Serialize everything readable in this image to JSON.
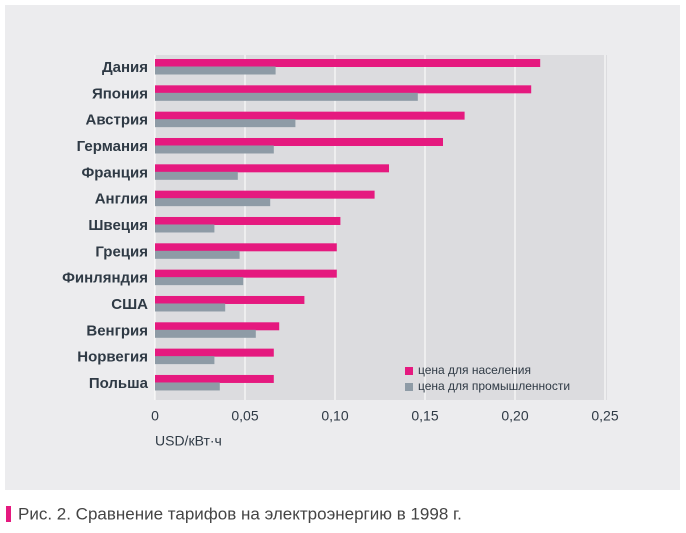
{
  "chart_data": {
    "type": "hbar",
    "categories": [
      "Дания",
      "Япония",
      "Австрия",
      "Германия",
      "Франция",
      "Англия",
      "Швеция",
      "Греция",
      "Финляндия",
      "США",
      "Венгрия",
      "Норвегия",
      "Польша"
    ],
    "series": [
      {
        "name": "цена для населения",
        "color": "#e5197f",
        "values": [
          0.214,
          0.209,
          0.172,
          0.16,
          0.13,
          0.122,
          0.103,
          0.101,
          0.101,
          0.083,
          0.069,
          0.066,
          0.066
        ]
      },
      {
        "name": "цена для промышленности",
        "color": "#8e9ba6",
        "values": [
          0.067,
          0.146,
          0.078,
          0.066,
          0.046,
          0.064,
          0.033,
          0.047,
          0.049,
          0.039,
          0.056,
          0.033,
          0.036
        ]
      }
    ],
    "xlabel": "USD/кВт·ч",
    "xlim": [
      0,
      0.25
    ],
    "xticks": [
      0,
      {
        "value": 0.05,
        "label": "0,05"
      },
      {
        "value": 0.1,
        "label": "0,10"
      },
      {
        "value": 0.15,
        "label": "0,15"
      },
      {
        "value": 0.2,
        "label": "0,20"
      },
      {
        "value": 0.25,
        "label": "0,25"
      }
    ],
    "grid": true,
    "legend": "lower right",
    "caption": "Рис. 2. Сравнение тарифов на электроэнергию в 1998 г."
  }
}
